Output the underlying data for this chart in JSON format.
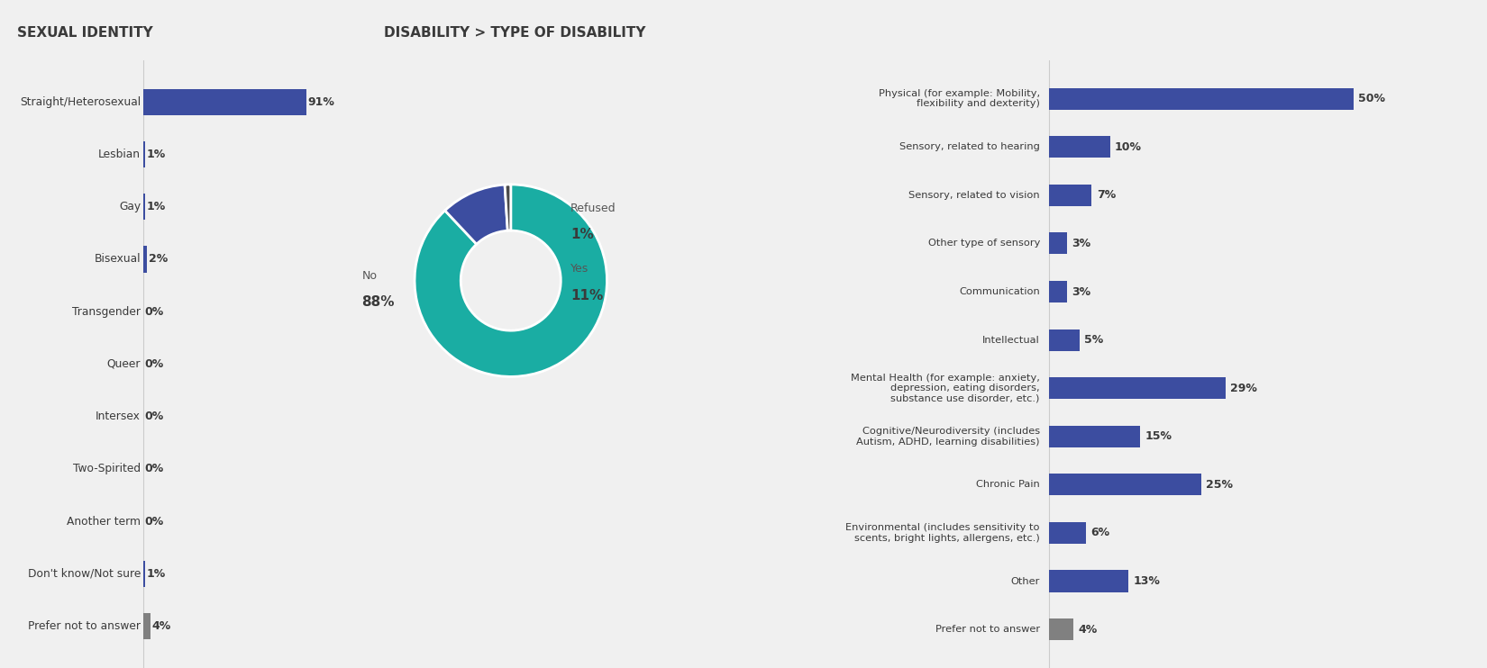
{
  "left_title": "SEXUAL IDENTITY",
  "right_title": "DISABILITY > TYPE OF DISABILITY",
  "background_color": "#f0f0f0",
  "panel_left_color": "#ffffff",
  "panel_right_color": "#ffffff",
  "sexual_identity_categories": [
    "Straight/Heterosexual",
    "Lesbian",
    "Gay",
    "Bisexual",
    "Transgender",
    "Queer",
    "Intersex",
    "Two-Spirited",
    "Another term",
    "Don't know/Not sure",
    "Prefer not to answer"
  ],
  "sexual_identity_values": [
    91,
    1,
    1,
    2,
    0,
    0,
    0,
    0,
    0,
    1,
    4
  ],
  "sexual_identity_bar_color": "#3c4da0",
  "sexual_identity_pna_color": "#808080",
  "donut_values": [
    88,
    11,
    1
  ],
  "donut_colors": [
    "#1aada3",
    "#3c4da0",
    "#4a4a4a"
  ],
  "disability_categories": [
    "Physical (for example: Mobility,\nflexibility and dexterity)",
    "Sensory, related to hearing",
    "Sensory, related to vision",
    "Other type of sensory",
    "Communication",
    "Intellectual",
    "Mental Health (for example: anxiety,\ndepression, eating disorders,\nsubstance use disorder, etc.)",
    "Cognitive/Neurodiversity (includes\nAutism, ADHD, learning disabilities)",
    "Chronic Pain",
    "Environmental (includes sensitivity to\nscents, bright lights, allergens, etc.)",
    "Other",
    "Prefer not to answer"
  ],
  "disability_values": [
    50,
    10,
    7,
    3,
    3,
    5,
    29,
    15,
    25,
    6,
    13,
    4
  ],
  "disability_bar_color": "#3c4da0",
  "disability_pna_color": "#808080"
}
